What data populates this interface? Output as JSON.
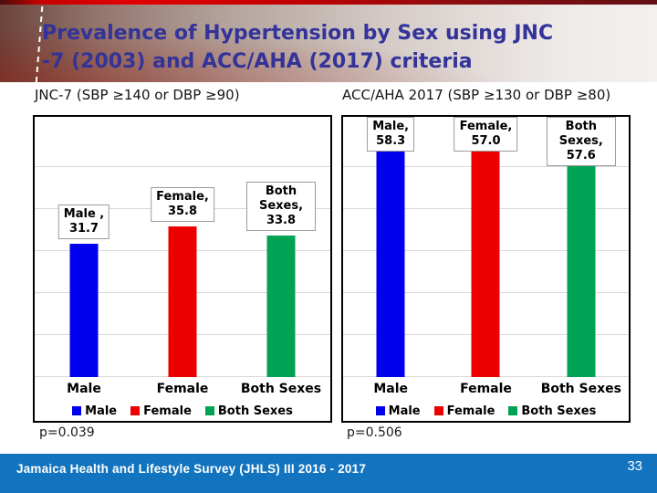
{
  "slide": {
    "title_line1": "Prevalence of Hypertension by Sex using JNC",
    "title_line2": "-7 (2003) and ACC/AHA (2017) criteria",
    "footer": {
      "text": "Jamaica Health and Lifestyle Survey (JHLS) III 2016 - 2017",
      "page_number": "33"
    }
  },
  "colors": {
    "title_text": "#333399",
    "footer_bg": "#1273be",
    "male": "#0000ee",
    "female": "#ee0000",
    "both_sexes": "#00a254",
    "gridline": "#d9d9d9"
  },
  "chart_data": [
    {
      "type": "bar",
      "title": "JNC-7 (SBP ≥140 or DBP ≥90)",
      "categories": [
        "Male",
        "Female",
        "Both Sexes"
      ],
      "values": [
        31.7,
        35.8,
        33.8
      ],
      "point_labels": [
        {
          "name": "Male ,",
          "value": "31.7"
        },
        {
          "name": "Female,",
          "value": "35.8"
        },
        {
          "name": "Both Sexes,",
          "value": "33.8"
        }
      ],
      "legend": [
        "Male",
        "Female",
        "Both Sexes"
      ],
      "legend_position": "bottom",
      "series_colors": [
        "#0000ee",
        "#ee0000",
        "#00a254"
      ],
      "ylim": [
        0,
        62
      ],
      "gridline_step": 10,
      "grid": true,
      "p_value": "p=0.039"
    },
    {
      "type": "bar",
      "title": "ACC/AHA 2017 (SBP ≥130 or DBP ≥80)",
      "categories": [
        "Male",
        "Female",
        "Both Sexes"
      ],
      "values": [
        58.3,
        57.0,
        57.6
      ],
      "point_labels": [
        {
          "name": "Male,",
          "value": "58.3"
        },
        {
          "name": "Female,",
          "value": "57.0"
        },
        {
          "name": "Both Sexes,",
          "value": "57.6"
        }
      ],
      "legend": [
        "Male",
        "Female",
        "Both Sexes"
      ],
      "legend_position": "bottom",
      "series_colors": [
        "#0000ee",
        "#ee0000",
        "#00a254"
      ],
      "ylim": [
        0,
        62
      ],
      "gridline_step": 10,
      "grid": true,
      "p_value": "p=0.506"
    }
  ]
}
